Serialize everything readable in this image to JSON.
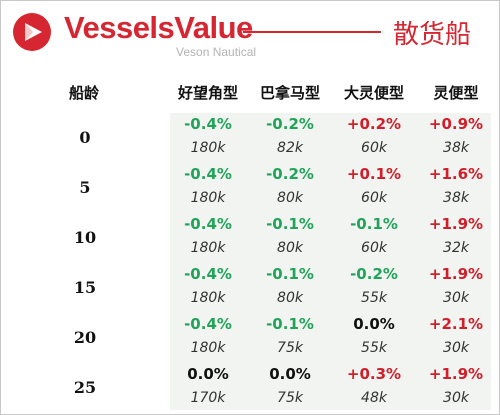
{
  "header": {
    "brand": "VesselsValue",
    "brand_sub": "Veson Nautical",
    "title": "散货船"
  },
  "colors": {
    "brand_red": "#d62631",
    "up": "#d01f2a",
    "down": "#22a35a"
  },
  "table": {
    "age_header": "船龄",
    "columns": [
      "好望角型",
      "巴拿马型",
      "大灵便型",
      "灵便型"
    ],
    "rows": [
      {
        "age": "0",
        "changes": [
          "-0.4%",
          "-0.2%",
          "+0.2%",
          "+0.9%"
        ],
        "values": [
          "180k",
          "82k",
          "60k",
          "38k"
        ]
      },
      {
        "age": "5",
        "changes": [
          "-0.4%",
          "-0.2%",
          "+0.1%",
          "+1.6%"
        ],
        "values": [
          "180k",
          "80k",
          "60k",
          "38k"
        ]
      },
      {
        "age": "10",
        "changes": [
          "-0.4%",
          "-0.1%",
          "-0.1%",
          "+1.9%"
        ],
        "values": [
          "180k",
          "80k",
          "60k",
          "32k"
        ]
      },
      {
        "age": "15",
        "changes": [
          "-0.4%",
          "-0.1%",
          "-0.2%",
          "+1.9%"
        ],
        "values": [
          "180k",
          "80k",
          "55k",
          "30k"
        ]
      },
      {
        "age": "20",
        "changes": [
          "-0.4%",
          "-0.1%",
          "0.0%",
          "+2.1%"
        ],
        "values": [
          "180k",
          "75k",
          "55k",
          "30k"
        ]
      },
      {
        "age": "25",
        "changes": [
          "0.0%",
          "0.0%",
          "+0.3%",
          "+1.9%"
        ],
        "values": [
          "170k",
          "75k",
          "48k",
          "30k"
        ]
      }
    ]
  }
}
